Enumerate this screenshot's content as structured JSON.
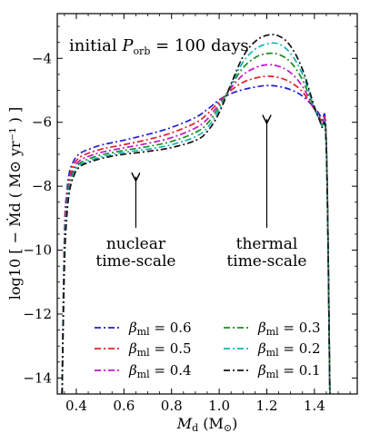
{
  "chart_data": {
    "type": "line",
    "title": "initial P_orb = 100 days",
    "title_parts": {
      "prefix": "initial ",
      "symbol": "P",
      "subscript": "orb",
      "suffix": " = 100 days"
    },
    "xlabel": "M_d (M_⊙)",
    "xlabel_parts": {
      "symbol": "M",
      "subscript": "d",
      "unit": " (M",
      "unit_sub": "⊙",
      "unit_close": ")"
    },
    "ylabel": "log10 [ − Ṁd ( M⊙ yr⁻¹ ) ]",
    "xlim": [
      0.32,
      1.58
    ],
    "ylim": [
      -14.5,
      -2.6
    ],
    "xticks": [
      0.4,
      0.6,
      0.8,
      1.0,
      1.2,
      1.4
    ],
    "xtick_labels": [
      "0.4",
      "0.6",
      "0.8",
      "1.0",
      "1.2",
      "1.4"
    ],
    "yticks": [
      -14,
      -12,
      -10,
      -8,
      -6,
      -4
    ],
    "ytick_labels": [
      "−14",
      "−12",
      "−10",
      "−8",
      "−6",
      "−4"
    ],
    "grid": false,
    "legend_placement": "bottom",
    "x": [
      0.34,
      0.35,
      0.36,
      0.37,
      0.38,
      0.39,
      0.4,
      0.42,
      0.45,
      0.5,
      0.55,
      0.6,
      0.7,
      0.8,
      0.9,
      0.95,
      1.0,
      1.05,
      1.1,
      1.15,
      1.2,
      1.25,
      1.3,
      1.35,
      1.4,
      1.43,
      1.45,
      1.465
    ],
    "series": [
      {
        "name": "β_ml = 0.6",
        "legend_label": "= 0.6",
        "color": "#1f1fd6",
        "dash": "7,3,2,3",
        "values": [
          -14.5,
          -9.5,
          -8.2,
          -7.6,
          -7.35,
          -7.2,
          -7.08,
          -6.95,
          -6.85,
          -6.72,
          -6.64,
          -6.56,
          -6.38,
          -6.16,
          -5.85,
          -5.6,
          -5.3,
          -5.1,
          -4.98,
          -4.9,
          -4.85,
          -4.88,
          -4.98,
          -5.18,
          -5.55,
          -5.9,
          -6.6,
          -14.5
        ]
      },
      {
        "name": "β_ml = 0.5",
        "legend_label": "= 0.5",
        "color": "#e0202a",
        "dash": "7,3,2,3",
        "values": [
          -14.5,
          -9.7,
          -8.35,
          -7.75,
          -7.48,
          -7.32,
          -7.2,
          -7.07,
          -6.97,
          -6.85,
          -6.77,
          -6.7,
          -6.54,
          -6.33,
          -6.02,
          -5.74,
          -5.35,
          -5.0,
          -4.75,
          -4.62,
          -4.56,
          -4.6,
          -4.75,
          -5.05,
          -5.6,
          -6.0,
          -6.65,
          -14.5
        ]
      },
      {
        "name": "β_ml = 0.4",
        "legend_label": "= 0.4",
        "color": "#c014c8",
        "dash": "7,3,2,3",
        "values": [
          -14.5,
          -9.9,
          -8.5,
          -7.9,
          -7.6,
          -7.43,
          -7.3,
          -7.17,
          -7.07,
          -6.95,
          -6.87,
          -6.8,
          -6.66,
          -6.48,
          -6.18,
          -5.9,
          -5.42,
          -4.92,
          -4.52,
          -4.3,
          -4.2,
          -4.25,
          -4.45,
          -4.88,
          -5.6,
          -6.05,
          -6.7,
          -14.5
        ]
      },
      {
        "name": "β_ml = 0.3",
        "legend_label": "= 0.3",
        "color": "#1e8c1e",
        "dash": "7,3,2,3",
        "values": [
          -14.5,
          -10.1,
          -8.65,
          -8.0,
          -7.7,
          -7.52,
          -7.38,
          -7.25,
          -7.15,
          -7.03,
          -6.95,
          -6.88,
          -6.76,
          -6.6,
          -6.32,
          -6.04,
          -5.5,
          -4.86,
          -4.3,
          -3.98,
          -3.85,
          -3.88,
          -4.12,
          -4.68,
          -5.58,
          -6.08,
          -6.75,
          -14.5
        ]
      },
      {
        "name": "β_ml = 0.2",
        "legend_label": "= 0.2",
        "color": "#14b4b4",
        "dash": "7,3,2,3",
        "values": [
          -14.5,
          -10.3,
          -8.8,
          -8.12,
          -7.8,
          -7.6,
          -7.45,
          -7.31,
          -7.21,
          -7.09,
          -7.01,
          -6.94,
          -6.84,
          -6.7,
          -6.45,
          -6.17,
          -5.6,
          -4.82,
          -4.12,
          -3.72,
          -3.55,
          -3.55,
          -3.85,
          -4.5,
          -5.55,
          -6.1,
          -6.8,
          -14.5
        ]
      },
      {
        "name": "β_ml = 0.1",
        "legend_label": "= 0.1",
        "color": "#111111",
        "dash": "7,3,2,3",
        "values": [
          -14.5,
          -10.5,
          -8.95,
          -8.22,
          -7.88,
          -7.67,
          -7.51,
          -7.36,
          -7.26,
          -7.14,
          -7.06,
          -7.0,
          -6.91,
          -6.79,
          -6.57,
          -6.29,
          -5.7,
          -4.8,
          -3.95,
          -3.48,
          -3.28,
          -3.3,
          -3.62,
          -4.35,
          -5.52,
          -6.12,
          -6.85,
          -14.5
        ]
      }
    ],
    "annotations": [
      {
        "lines": [
          "nuclear",
          "time-scale"
        ],
        "arrow_from": [
          0.65,
          -9.3
        ],
        "arrow_to": [
          0.65,
          -7.7
        ],
        "text_x": 0.65,
        "text_y": -9.95
      },
      {
        "lines": [
          "thermal",
          "time-scale"
        ],
        "arrow_from": [
          1.2,
          -9.3
        ],
        "arrow_to": [
          1.2,
          -5.9
        ],
        "text_x": 1.2,
        "text_y": -9.95
      }
    ],
    "legend_symbol": "β",
    "legend_subscript": "ml"
  }
}
